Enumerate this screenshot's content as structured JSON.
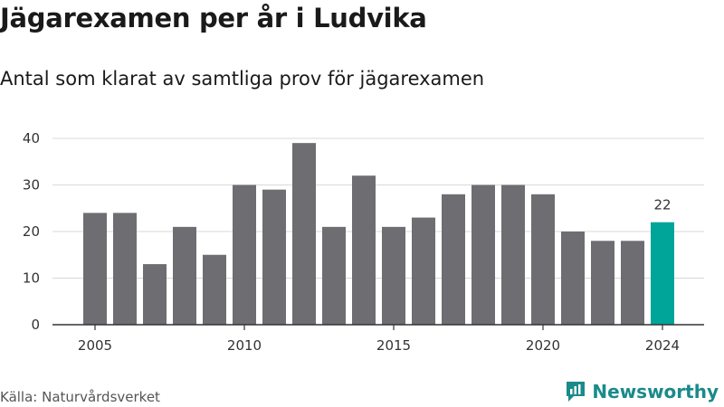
{
  "title": "Jägarexamen per år i Ludvika",
  "subtitle": "Antal som klarat av samtliga prov för jägarexamen",
  "source": "Källa: Naturvårdsverket",
  "brand": {
    "name": "Newsworthy",
    "icon": "newsworthy-logo-icon",
    "color": "#1a8a8a"
  },
  "colors": {
    "bar": "#6e6d72",
    "highlight": "#00a59a",
    "grid": "#d9d9d9",
    "axis": "#333333"
  },
  "chart_data": {
    "type": "bar",
    "title": "Jägarexamen per år i Ludvika",
    "subtitle": "Antal som klarat av samtliga prov för jägarexamen",
    "categories": [
      2005,
      2006,
      2007,
      2008,
      2009,
      2010,
      2011,
      2012,
      2013,
      2014,
      2015,
      2016,
      2017,
      2018,
      2019,
      2020,
      2021,
      2022,
      2023,
      2024
    ],
    "values": [
      24,
      24,
      13,
      21,
      15,
      30,
      29,
      39,
      21,
      32,
      21,
      23,
      28,
      30,
      30,
      28,
      20,
      18,
      18,
      22
    ],
    "highlight_category": 2024,
    "highlight_label": "22",
    "xticks": [
      "2005",
      "2010",
      "2015",
      "2020",
      "2024"
    ],
    "yticks": [
      0,
      10,
      20,
      30,
      40
    ],
    "ylim": [
      0,
      40
    ],
    "xlabel": "",
    "ylabel": "",
    "grid": true,
    "legend": "none"
  }
}
